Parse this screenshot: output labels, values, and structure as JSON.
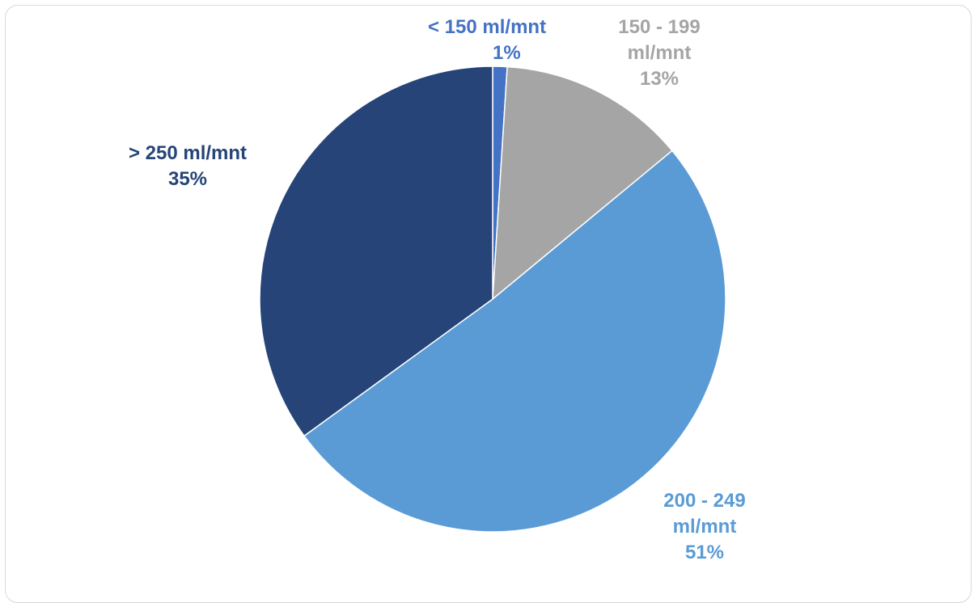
{
  "chart_data": {
    "type": "pie",
    "title": "",
    "slices": [
      {
        "label": "< 150 ml/mnt",
        "label_lines": [
          "< 150 ml/mnt"
        ],
        "value": 1,
        "value_text": "1%",
        "color": "#4472C4"
      },
      {
        "label": "150 - 199 ml/mnt",
        "label_lines": [
          "150 - 199",
          "ml/mnt"
        ],
        "value": 13,
        "value_text": "13%",
        "color": "#A5A5A5"
      },
      {
        "label": "200 - 249 ml/mnt",
        "label_lines": [
          "200 - 249",
          "ml/mnt"
        ],
        "value": 51,
        "value_text": "51%",
        "color": "#5B9BD5"
      },
      {
        "label": "> 250 ml/mnt",
        "label_lines": [
          "> 250 ml/mnt"
        ],
        "value": 35,
        "value_text": "35%",
        "color": "#264478"
      }
    ],
    "start_angle": "top",
    "direction": "clockwise",
    "legend": "none",
    "data_labels": "outside"
  }
}
